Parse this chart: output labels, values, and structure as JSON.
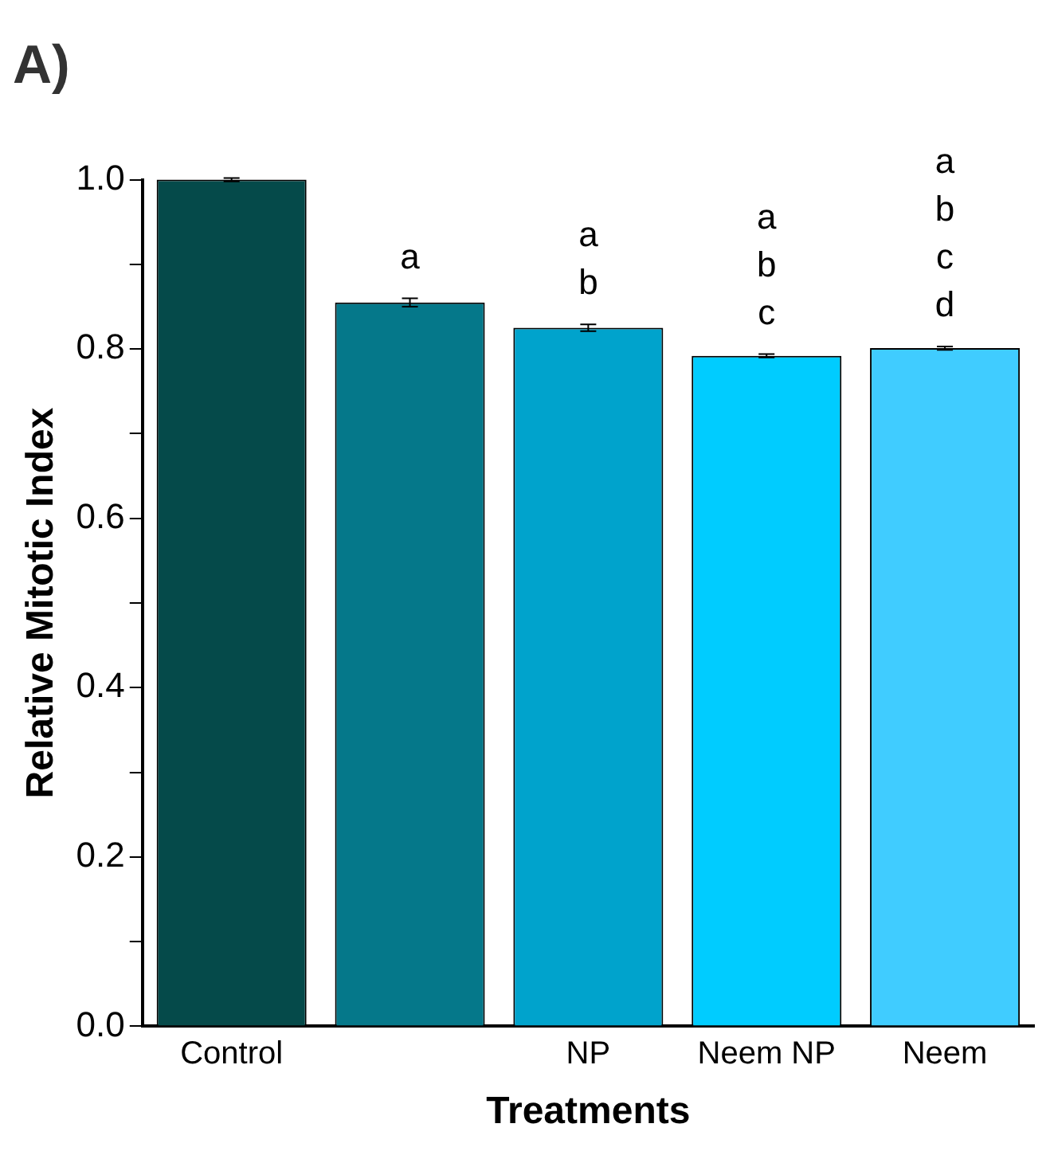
{
  "chart_data": {
    "type": "bar",
    "title": "A)",
    "xlabel": "Treatments",
    "ylabel": "Relative Mitotic Index",
    "categories": [
      "Control",
      null,
      "NP",
      "Neem NP",
      "Neem"
    ],
    "values": [
      1.0,
      0.855,
      0.825,
      0.792,
      0.801
    ],
    "errors": [
      0.002,
      0.005,
      0.004,
      0.002,
      0.002
    ],
    "colors": [
      "#054a4a",
      "#05788a",
      "#00a3cc",
      "#00ccff",
      "#40ccff"
    ],
    "ylim": [
      0,
      1.0
    ],
    "yticks": [
      {
        "value": 0,
        "label": "0.0"
      },
      {
        "value": 0.1,
        "label": null
      },
      {
        "value": 0.2,
        "label": "0.2"
      },
      {
        "value": 0.3,
        "label": null
      },
      {
        "value": 0.4,
        "label": "0.4"
      },
      {
        "value": 0.5,
        "label": null
      },
      {
        "value": 0.6,
        "label": "0.6"
      },
      {
        "value": 0.7,
        "label": null
      },
      {
        "value": 0.8,
        "label": "0.8"
      },
      {
        "value": 0.9,
        "label": null
      },
      {
        "value": 1.0,
        "label": "1.0"
      }
    ],
    "annotations": [
      "a",
      "a\nb",
      "a\nb\nc",
      "a\nb\nc\nd"
    ],
    "grid": false,
    "legend": false
  }
}
